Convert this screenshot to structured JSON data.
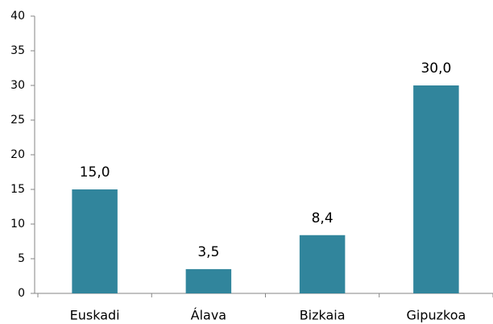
{
  "chart_data": {
    "type": "bar",
    "categories": [
      "Euskadi",
      "Álava",
      "Bizkaia",
      "Gipuzkoa"
    ],
    "values": [
      15,
      3.5,
      8.4,
      30
    ],
    "value_labels": [
      "15,0",
      "3,5",
      "8,4",
      "30,0"
    ],
    "color": "#31859c",
    "ylim": [
      0,
      40
    ],
    "yticks": [
      0,
      5,
      10,
      15,
      20,
      25,
      30,
      35,
      40
    ],
    "grid": false
  }
}
